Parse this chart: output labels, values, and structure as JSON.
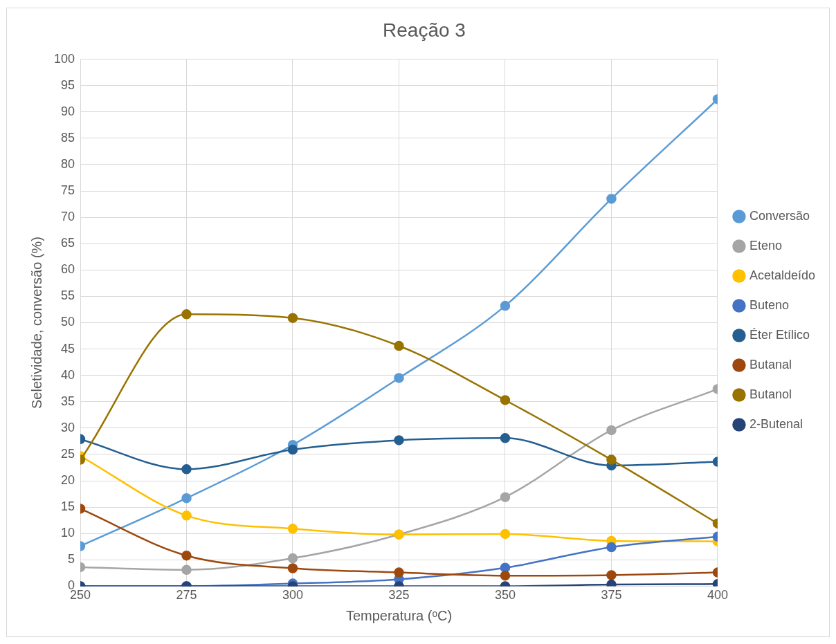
{
  "chart_data": {
    "type": "line",
    "title": "Reação 3",
    "xlabel": "Temperatura (ᵒC)",
    "ylabel": "Seletividade, conversão (%)",
    "x": [
      250,
      275,
      300,
      325,
      350,
      375,
      400
    ],
    "xlim": [
      250,
      400
    ],
    "xticks": [
      250,
      275,
      300,
      325,
      350,
      375,
      400
    ],
    "ylim": [
      0,
      100
    ],
    "yticks": [
      0,
      5,
      10,
      15,
      20,
      25,
      30,
      35,
      40,
      45,
      50,
      55,
      60,
      65,
      70,
      75,
      80,
      85,
      90,
      95,
      100
    ],
    "grid": true,
    "legend": "right",
    "marker": "circle",
    "line_style": "solid",
    "series": [
      {
        "name": "Conversão",
        "color": "#5b9bd5",
        "values": [
          7.6,
          16.7,
          26.8,
          39.5,
          53.2,
          73.5,
          92.4
        ]
      },
      {
        "name": "Eteno",
        "color": "#a5a5a5",
        "values": [
          3.6,
          3.1,
          5.3,
          9.8,
          16.9,
          29.6,
          37.4
        ]
      },
      {
        "name": "Acetaldeído",
        "color": "#ffc000",
        "values": [
          24.7,
          13.4,
          10.9,
          9.8,
          9.9,
          8.6,
          8.5
        ]
      },
      {
        "name": "Buteno",
        "color": "#4472c4",
        "values": [
          0,
          0,
          0.5,
          1.3,
          3.5,
          7.4,
          9.4
        ]
      },
      {
        "name": "Éter Etílico",
        "color": "#255e91",
        "values": [
          27.9,
          22.2,
          25.9,
          27.7,
          28.1,
          22.9,
          23.6
        ]
      },
      {
        "name": "Butanal",
        "color": "#9e480e",
        "values": [
          14.7,
          5.8,
          3.4,
          2.6,
          2.0,
          2.1,
          2.6
        ]
      },
      {
        "name": "Butanol",
        "color": "#997300",
        "values": [
          24.0,
          51.6,
          50.9,
          45.6,
          35.3,
          24.0,
          11.9
        ]
      },
      {
        "name": "2-Butenal",
        "color": "#264478",
        "values": [
          0,
          0,
          0,
          0,
          0,
          0.3,
          0.4
        ]
      }
    ]
  }
}
